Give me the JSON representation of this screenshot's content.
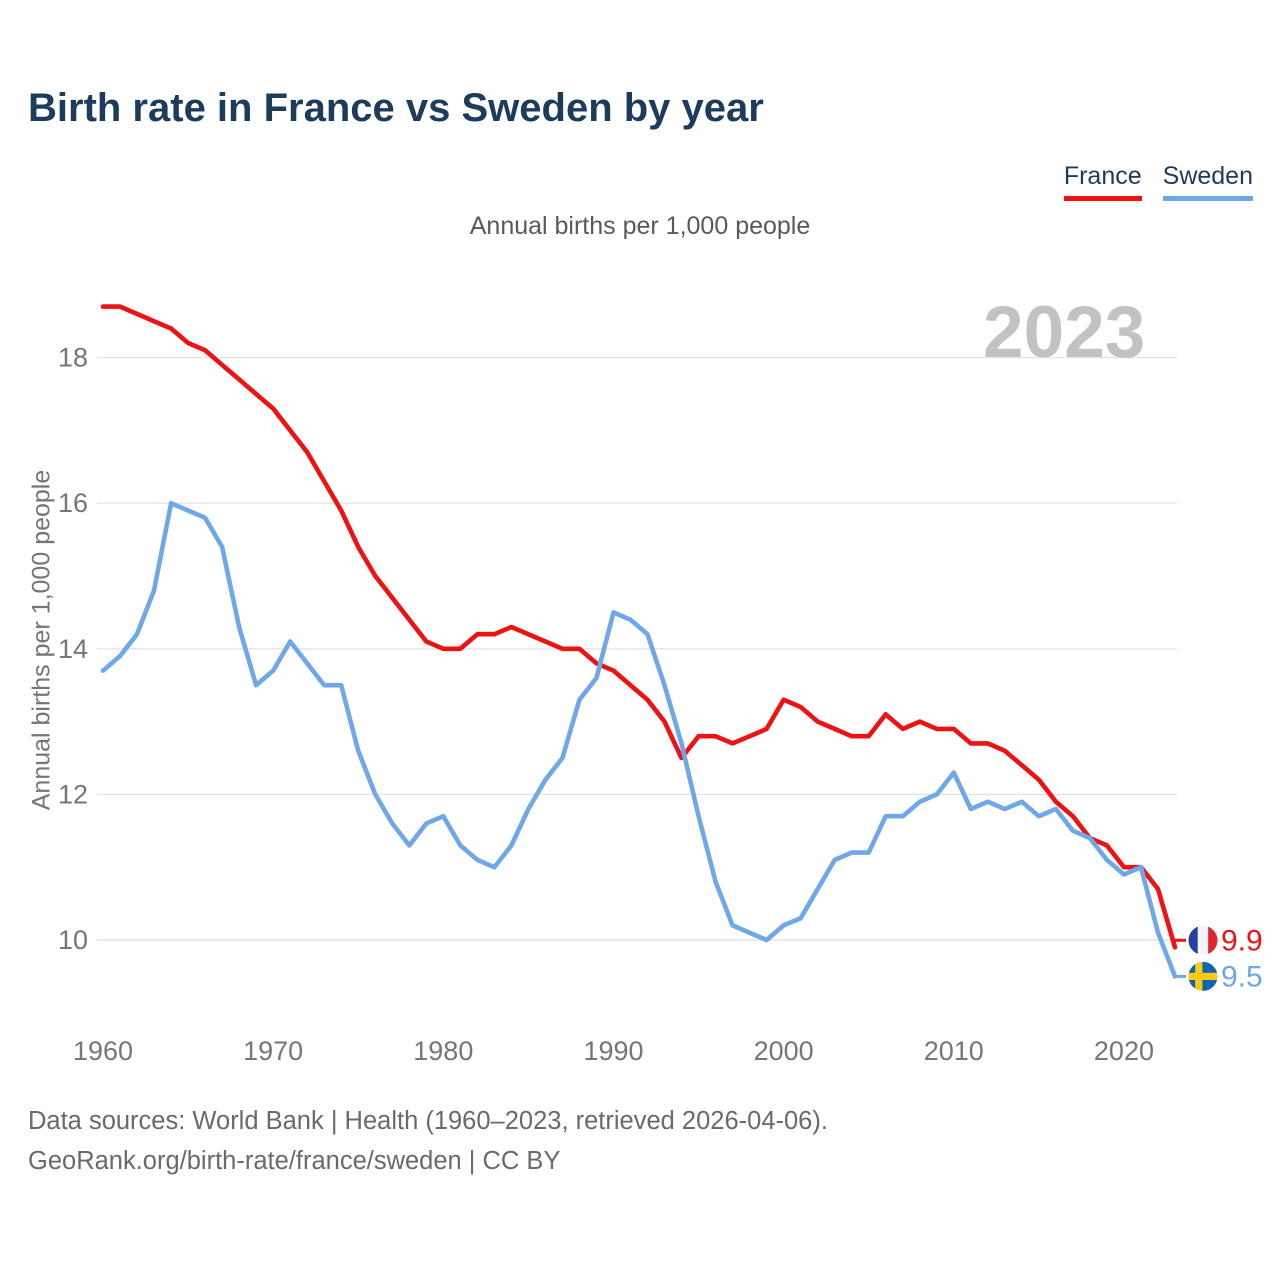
{
  "header": {
    "title": "Birth rate in France vs Sweden by year",
    "subtitle": "Annual births per 1,000 people"
  },
  "legend": [
    {
      "label": "France",
      "color": "#ee1212"
    },
    {
      "label": "Sweden",
      "color": "#6fa8e8"
    }
  ],
  "watermark": "2023",
  "axes": {
    "y_title": "Annual births per 1,000 people",
    "y_ticks": [
      18,
      16,
      14,
      12,
      10
    ],
    "x_ticks": [
      1960,
      1970,
      1980,
      1990,
      2000,
      2010,
      2020
    ]
  },
  "end_labels": [
    {
      "series": "France",
      "value": "9.9",
      "flag": "france-flag-icon",
      "color": "#ee1212"
    },
    {
      "series": "Sweden",
      "value": "9.5",
      "flag": "sweden-flag-icon",
      "color": "#6fa8e8"
    }
  ],
  "footer": {
    "line1": "Data sources: World Bank | Health (1960–2023, retrieved 2026-04-06).",
    "line2": "GeoRank.org/birth-rate/france/sweden | CC BY"
  },
  "chart_data": {
    "type": "line",
    "title": "Birth rate in France vs Sweden by year",
    "subtitle": "Annual births per 1,000 people",
    "ylabel": "Annual births per 1,000 people",
    "x_start": 1960,
    "x_end": 2023,
    "x_step": 1,
    "ylim": [
      9.4,
      18.8
    ],
    "xlim": [
      1959,
      2024
    ],
    "grid": "horizontal",
    "legend_position": "top-right",
    "series": [
      {
        "name": "France",
        "color": "#ee1212",
        "end_label": "9.9",
        "values": [
          18.7,
          18.7,
          18.6,
          18.5,
          18.4,
          18.2,
          18.1,
          17.9,
          17.7,
          17.5,
          17.3,
          17.0,
          16.7,
          16.3,
          15.9,
          15.4,
          15.0,
          14.7,
          14.4,
          14.1,
          14.0,
          14.0,
          14.2,
          14.2,
          14.3,
          14.2,
          14.1,
          14.0,
          14.0,
          13.8,
          13.7,
          13.5,
          13.3,
          13.0,
          12.5,
          12.8,
          12.8,
          12.7,
          12.8,
          12.9,
          13.3,
          13.2,
          13.0,
          12.9,
          12.8,
          12.8,
          13.1,
          12.9,
          13.0,
          12.9,
          12.9,
          12.7,
          12.7,
          12.6,
          12.4,
          12.2,
          11.9,
          11.7,
          11.4,
          11.3,
          11.0,
          11.0,
          10.7,
          9.9
        ]
      },
      {
        "name": "Sweden",
        "color": "#6fa8e8",
        "end_label": "9.5",
        "values": [
          13.7,
          13.9,
          14.2,
          14.8,
          16.0,
          15.9,
          15.8,
          15.4,
          14.3,
          13.5,
          13.7,
          14.1,
          13.8,
          13.5,
          13.5,
          12.6,
          12.0,
          11.6,
          11.3,
          11.6,
          11.7,
          11.3,
          11.1,
          11.0,
          11.3,
          11.8,
          12.2,
          12.5,
          13.3,
          13.6,
          14.5,
          14.4,
          14.2,
          13.5,
          12.7,
          11.7,
          10.8,
          10.2,
          10.1,
          10.0,
          10.2,
          10.3,
          10.7,
          11.1,
          11.2,
          11.2,
          11.7,
          11.7,
          11.9,
          12.0,
          12.3,
          11.8,
          11.9,
          11.8,
          11.9,
          11.7,
          11.8,
          11.5,
          11.4,
          11.1,
          10.9,
          11.0,
          10.1,
          9.5
        ]
      }
    ]
  }
}
